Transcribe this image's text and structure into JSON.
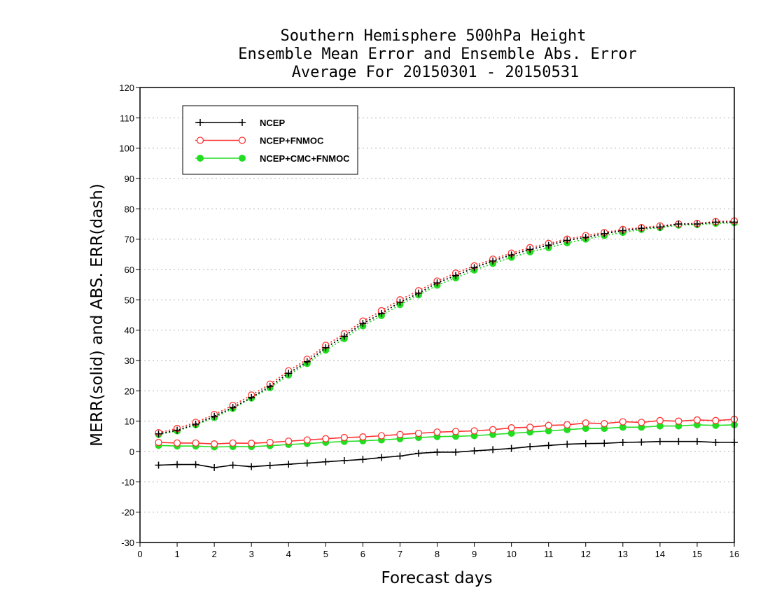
{
  "chart_data": {
    "type": "line",
    "title": [
      "Southern Hemisphere 500hPa Height",
      "Ensemble Mean Error and Ensemble Abs. Error",
      "Average For 20150301 - 20150531"
    ],
    "xlabel": "Forecast days",
    "ylabel": "MERR(solid) and ABS. ERR(dash)",
    "xlim": [
      0,
      16
    ],
    "ylim": [
      -30,
      120
    ],
    "xticks": [
      0,
      1,
      2,
      3,
      4,
      5,
      6,
      7,
      8,
      9,
      10,
      11,
      12,
      13,
      14,
      15,
      16
    ],
    "yticks": [
      -30,
      -20,
      -10,
      0,
      10,
      20,
      30,
      40,
      50,
      60,
      70,
      80,
      90,
      100,
      110,
      120
    ],
    "grid": "horizontal dotted",
    "legend_position": "top-left",
    "x": [
      0.5,
      1,
      1.5,
      2,
      2.5,
      3,
      3.5,
      4,
      4.5,
      5,
      5.5,
      6,
      6.5,
      7,
      7.5,
      8,
      8.5,
      9,
      9.5,
      10,
      10.5,
      11,
      11.5,
      12,
      12.5,
      13,
      13.5,
      14,
      14.5,
      15,
      15.5,
      16
    ],
    "series": [
      {
        "name": "NCEP",
        "color": "#000000",
        "marker": "plus",
        "merr": [
          -4.5,
          -4.3,
          -4.3,
          -5.3,
          -4.5,
          -5.0,
          -4.6,
          -4.2,
          -3.8,
          -3.4,
          -3.0,
          -2.6,
          -2.0,
          -1.5,
          -0.6,
          -0.2,
          -0.2,
          0.2,
          0.6,
          1.0,
          1.6,
          2.0,
          2.4,
          2.6,
          2.7,
          3.0,
          3.1,
          3.3,
          3.3,
          3.3,
          3.0,
          3.0
        ],
        "abs_err": [
          5.8,
          7.0,
          9.0,
          11.6,
          14.5,
          17.8,
          21.5,
          25.8,
          29.6,
          34.2,
          38.0,
          42.2,
          45.5,
          49.2,
          52.2,
          55.6,
          58.0,
          60.6,
          62.8,
          64.8,
          66.6,
          68.0,
          69.6,
          70.6,
          71.8,
          72.8,
          73.6,
          74.0,
          75.0,
          75.0,
          75.6,
          75.6
        ]
      },
      {
        "name": "NCEP+FNMOC",
        "color": "#ff3333",
        "marker": "open-circle",
        "merr": [
          3.0,
          2.8,
          2.8,
          2.5,
          2.8,
          2.7,
          3.0,
          3.4,
          3.8,
          4.2,
          4.6,
          4.8,
          5.2,
          5.6,
          6.0,
          6.4,
          6.6,
          6.8,
          7.2,
          7.8,
          8.0,
          8.6,
          8.8,
          9.4,
          9.2,
          9.8,
          9.6,
          10.2,
          10.0,
          10.4,
          10.2,
          10.6
        ],
        "abs_err": [
          6.2,
          7.6,
          9.6,
          12.2,
          15.2,
          18.6,
          22.2,
          26.6,
          30.4,
          35.0,
          38.8,
          43.0,
          46.4,
          50.0,
          53.0,
          56.2,
          58.8,
          61.2,
          63.4,
          65.4,
          67.2,
          68.6,
          70.0,
          71.2,
          72.2,
          73.2,
          73.8,
          74.4,
          75.0,
          75.2,
          75.8,
          76.0
        ]
      },
      {
        "name": "NCEP+CMC+FNMOC",
        "color": "#22dd22",
        "marker": "filled-circle",
        "merr": [
          2.0,
          1.8,
          1.8,
          1.5,
          1.6,
          1.6,
          1.9,
          2.3,
          2.6,
          3.0,
          3.3,
          3.5,
          3.8,
          4.2,
          4.6,
          4.9,
          5.0,
          5.2,
          5.6,
          6.0,
          6.4,
          6.8,
          7.2,
          7.6,
          7.6,
          8.0,
          8.0,
          8.4,
          8.4,
          8.8,
          8.6,
          8.8
        ],
        "abs_err": [
          5.6,
          6.8,
          8.8,
          11.2,
          14.2,
          17.6,
          21.0,
          25.2,
          29.0,
          33.4,
          37.2,
          41.4,
          44.8,
          48.4,
          51.6,
          54.8,
          57.2,
          59.8,
          62.0,
          64.0,
          65.8,
          67.2,
          68.8,
          70.0,
          71.2,
          72.2,
          73.2,
          73.8,
          74.6,
          74.8,
          75.2,
          75.4
        ]
      }
    ]
  }
}
